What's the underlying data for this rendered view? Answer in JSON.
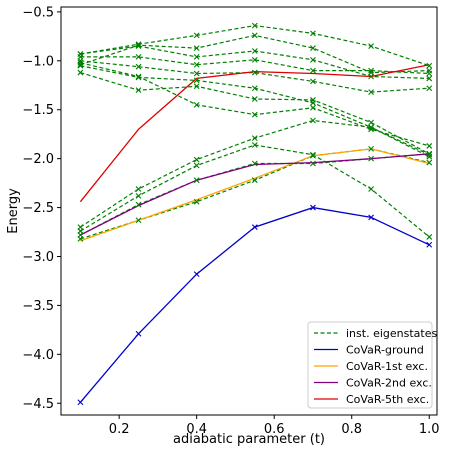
{
  "chart_data": {
    "type": "line",
    "xlabel": "adiabatic parameter (t)",
    "ylabel": "Energy",
    "xlim": [
      0.05,
      1.02
    ],
    "ylim": [
      -4.62,
      -0.45
    ],
    "x": [
      0.1,
      0.25,
      0.4,
      0.55,
      0.7,
      0.85,
      1.0
    ],
    "xticks": [
      0.2,
      0.4,
      0.6,
      0.8,
      1.0
    ],
    "xtick_labels": [
      "0.2",
      "0.4",
      "0.6",
      "0.8",
      "1.0"
    ],
    "yticks": [
      -4.5,
      -4.0,
      -3.5,
      -3.0,
      -2.5,
      -2.0,
      -1.5,
      -1.0,
      -0.5
    ],
    "ytick_labels": [
      "−4.5",
      "−4.0",
      "−3.5",
      "−3.0",
      "−2.5",
      "−2.0",
      "−1.5",
      "−1.0",
      "−0.5"
    ],
    "grid": false,
    "legend_position": "lower-right",
    "eigen_name": "inst. eigenstates",
    "eigen_color": "#008000",
    "eigenstates": [
      [
        -2.82,
        -2.63,
        -2.44,
        -2.22,
        -1.97,
        -1.9,
        -2.04
      ],
      [
        -2.78,
        -2.47,
        -2.22,
        -2.05,
        -2.05,
        -2.0,
        -1.95
      ],
      [
        -2.74,
        -2.38,
        -2.07,
        -1.86,
        -1.96,
        -2.31,
        -2.8
      ],
      [
        -2.7,
        -2.31,
        -2.01,
        -1.79,
        -1.61,
        -1.68,
        -1.96
      ],
      [
        -1.12,
        -1.3,
        -1.26,
        -1.39,
        -1.4,
        -1.63,
        -1.95
      ],
      [
        -1.05,
        -1.17,
        -1.2,
        -1.28,
        -1.43,
        -1.68,
        -1.98
      ],
      [
        -1.02,
        -1.16,
        -1.45,
        -1.55,
        -1.48,
        -1.7,
        -1.87
      ],
      [
        -1.0,
        -1.06,
        -1.13,
        -1.12,
        -1.21,
        -1.32,
        -1.28
      ],
      [
        -0.93,
        -0.85,
        -0.96,
        -0.9,
        -0.99,
        -1.16,
        -1.18
      ],
      [
        -0.93,
        -0.83,
        -0.74,
        -0.64,
        -0.72,
        -0.85,
        -1.05
      ],
      [
        -1.04,
        -0.84,
        -0.87,
        -0.74,
        -0.87,
        -1.12,
        -1.1
      ],
      [
        -0.96,
        -0.96,
        -1.04,
        -0.99,
        -1.1,
        -1.1,
        -1.13
      ]
    ],
    "series": [
      {
        "name": "CoVaR-ground",
        "color": "#0000cc",
        "values": [
          -4.49,
          -3.79,
          -3.18,
          -2.7,
          -2.5,
          -2.6,
          -2.88
        ]
      },
      {
        "name": "CoVaR-1st exc.",
        "color": "#ffa500",
        "values": [
          -2.84,
          -2.63,
          -2.42,
          -2.2,
          -1.97,
          -1.9,
          -2.05
        ]
      },
      {
        "name": "CoVaR-2nd exc.",
        "color": "#800080",
        "values": [
          -2.78,
          -2.48,
          -2.22,
          -2.06,
          -2.04,
          -2.0,
          -1.95
        ]
      },
      {
        "name": "CoVaR-5th exc.",
        "color": "#dd0000",
        "values": [
          -2.44,
          -1.7,
          -1.18,
          -1.11,
          -1.13,
          -1.16,
          -1.04
        ]
      }
    ]
  }
}
